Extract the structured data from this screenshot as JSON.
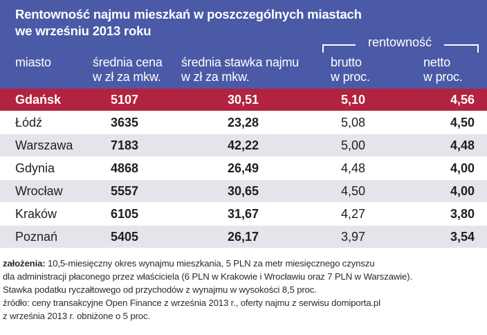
{
  "title_line1": "Rentowność najmu mieszkań w poszczególnych miastach",
  "title_line2": "we wrześniu 2013 roku",
  "headers": {
    "city": "miasto",
    "price_l1": "średnia cena",
    "price_l2": "w zł za mkw.",
    "rent_l1": "średnia stawka najmu",
    "rent_l2": "w zł za mkw.",
    "group": "rentowność",
    "brutto_l1": "brutto",
    "brutto_l2": "w proc.",
    "netto_l1": "netto",
    "netto_l2": "w proc."
  },
  "colors": {
    "header_bg": "#4a5aa6",
    "highlight_row": "#b2233f",
    "stripe": "#e3e5ea"
  },
  "chart_data": {
    "type": "table",
    "highlighted_row": "Gdańsk",
    "columns": [
      "miasto",
      "średnia cena w zł za mkw.",
      "średnia stawka najmu w zł za mkw.",
      "rentowność brutto w proc.",
      "rentowność netto w proc."
    ],
    "rows": [
      {
        "city": "Gdańsk",
        "price": "5107",
        "rent": "30,51",
        "brutto": "5,10",
        "netto": "4,56"
      },
      {
        "city": "Łódź",
        "price": "3635",
        "rent": "23,28",
        "brutto": "5,08",
        "netto": "4,50"
      },
      {
        "city": "Warszawa",
        "price": "7183",
        "rent": "42,22",
        "brutto": "5,00",
        "netto": "4,48"
      },
      {
        "city": "Gdynia",
        "price": "4868",
        "rent": "26,49",
        "brutto": "4,48",
        "netto": "4,00"
      },
      {
        "city": "Wrocław",
        "price": "5557",
        "rent": "30,65",
        "brutto": "4,50",
        "netto": "4,00"
      },
      {
        "city": "Kraków",
        "price": "6105",
        "rent": "31,67",
        "brutto": "4,27",
        "netto": "3,80"
      },
      {
        "city": "Poznań",
        "price": "5405",
        "rent": "26,17",
        "brutto": "3,97",
        "netto": "3,54"
      }
    ]
  },
  "notes": {
    "assumptions_label": "założenia:",
    "line1": " 10,5-miesięczny okres wynajmu mieszkania, 5 PLN za metr miesięcznego czynszu",
    "line2": "dla administracji płaconego przez właściciela (6 PLN w Krakowie i Wrocławiu oraz 7 PLN w Warszawie).",
    "line3": "Stawka podatku ryczałtowego od przychodów z wynajmu w wysokości 8,5 proc.",
    "line4": "źródło: ceny transakcyjne Open Finance z września 2013 r., oferty najmu z serwisu domiporta.pl",
    "line5": "z września 2013 r. obniżone o 5 proc."
  }
}
